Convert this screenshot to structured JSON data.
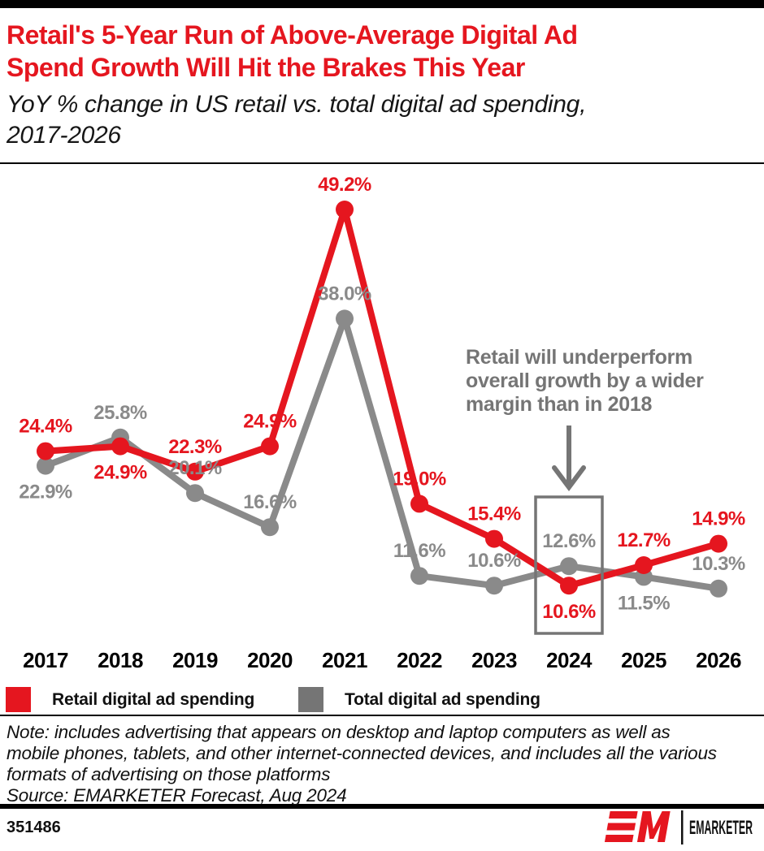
{
  "header": {
    "title_line1": "Retail's 5-Year Run of Above-Average Digital Ad",
    "title_line2": "Spend Growth Will Hit the Brakes This Year",
    "subtitle_line1": "YoY % change in US retail vs. total digital ad spending,",
    "subtitle_line2": "2017-2026"
  },
  "chart_data": {
    "type": "line",
    "categories": [
      "2017",
      "2018",
      "2019",
      "2020",
      "2021",
      "2022",
      "2023",
      "2024",
      "2025",
      "2026"
    ],
    "series": [
      {
        "name": "Retail digital ad spending",
        "color": "#e5161f",
        "values": [
          24.4,
          24.9,
          22.3,
          24.9,
          49.2,
          19.0,
          15.4,
          10.6,
          12.7,
          14.9
        ],
        "label_position": [
          "above",
          "below",
          "above",
          "above",
          "above",
          "above",
          "above",
          "below",
          "above",
          "above"
        ]
      },
      {
        "name": "Total digital ad spending",
        "color": "#8a8a8a",
        "values": [
          22.9,
          25.8,
          20.1,
          16.6,
          38.0,
          11.6,
          10.6,
          12.6,
          11.5,
          10.3
        ],
        "label_position": [
          "below",
          "above",
          "above",
          "above",
          "above",
          "above",
          "above",
          "above",
          "below",
          "above"
        ]
      }
    ],
    "value_suffix": "%",
    "ylim": [
      8,
      52
    ],
    "grid": false,
    "legend_position": "bottom",
    "annotation": {
      "line1": "Retail will underperform",
      "line2": "overall growth by a wider",
      "line3": "margin than in 2018",
      "target_category": "2024",
      "color": "#757575"
    },
    "highlight_box": {
      "category": "2024",
      "border_color": "#757575"
    }
  },
  "legend": {
    "items": [
      {
        "label": "Retail digital ad spending",
        "color": "#e5161f"
      },
      {
        "label": "Total digital ad spending",
        "color": "#757575"
      }
    ]
  },
  "notes": {
    "note": "Note: includes advertising that appears on desktop and laptop computers as well as mobile phones, tablets, and other internet-connected devices, and includes all the various formats of advertising on those platforms",
    "source": "Source: EMARKETER Forecast, Aug 2024"
  },
  "footer": {
    "chart_id": "351486",
    "brand": "EMARKETER"
  },
  "colors": {
    "topbar": "#000000",
    "accent_red": "#e5161f",
    "series_gray": "#8a8a8a",
    "annotation_gray": "#757575"
  }
}
